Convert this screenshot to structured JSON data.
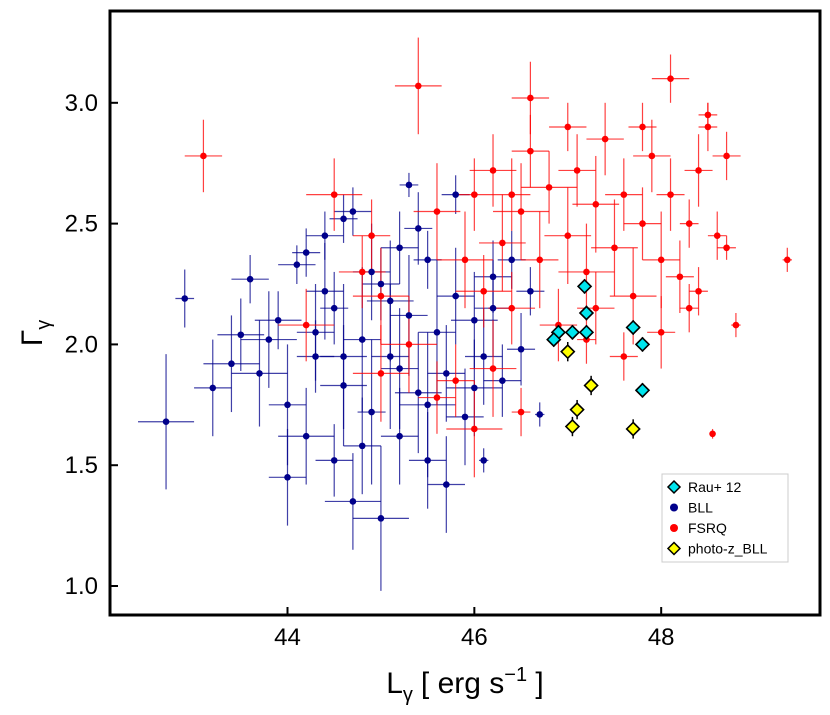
{
  "chart_data": {
    "type": "scatter",
    "title": "",
    "xlabel": {
      "main": "L",
      "sub": "γ",
      "units": "[ erg s",
      "sup": "−1",
      "close": " ]"
    },
    "ylabel": {
      "main": "Γ",
      "sub": "γ"
    },
    "xlim": [
      42.1,
      49.7
    ],
    "ylim": [
      0.88,
      3.38
    ],
    "xticks": [
      44,
      46,
      48
    ],
    "xtick_labels": [
      "44",
      "46",
      "48"
    ],
    "yticks": [
      1.0,
      1.5,
      2.0,
      2.5,
      3.0
    ],
    "ytick_labels": [
      "1.0",
      "1.5",
      "2.0",
      "2.5",
      "3.0"
    ],
    "grid": false,
    "legend_position": "bottom-right",
    "colors": {
      "BLL": "#00008b",
      "FSRQ": "#ff0000",
      "Rau": "#00e5ee",
      "photoz": "#ffff00"
    },
    "series": [
      {
        "name": "BLL",
        "marker": "circle",
        "color": "#00008b",
        "points": [
          [
            42.7,
            1.68,
            0.3,
            0.28
          ],
          [
            42.9,
            2.19,
            0.1,
            0.12
          ],
          [
            43.2,
            1.82,
            0.2,
            0.2
          ],
          [
            43.5,
            2.04,
            0.25,
            0.15
          ],
          [
            43.6,
            2.27,
            0.2,
            0.1
          ],
          [
            43.7,
            1.88,
            0.3,
            0.22
          ],
          [
            43.9,
            2.1,
            0.25,
            0.12
          ],
          [
            44.0,
            1.75,
            0.2,
            0.25
          ],
          [
            44.1,
            2.33,
            0.2,
            0.08
          ],
          [
            44.2,
            1.62,
            0.3,
            0.2
          ],
          [
            44.3,
            1.95,
            0.2,
            0.15
          ],
          [
            44.4,
            2.45,
            0.2,
            0.1
          ],
          [
            44.5,
            1.52,
            0.2,
            0.15
          ],
          [
            44.5,
            2.15,
            0.15,
            0.15
          ],
          [
            44.6,
            1.83,
            0.25,
            0.25
          ],
          [
            44.7,
            2.55,
            0.2,
            0.1
          ],
          [
            44.7,
            1.35,
            0.3,
            0.2
          ],
          [
            44.8,
            2.02,
            0.2,
            0.3
          ],
          [
            44.9,
            1.72,
            0.15,
            0.3
          ],
          [
            45.0,
            2.25,
            0.2,
            0.15
          ],
          [
            45.0,
            1.28,
            0.3,
            0.3
          ],
          [
            45.1,
            1.95,
            0.2,
            0.3
          ],
          [
            45.2,
            2.4,
            0.2,
            0.15
          ],
          [
            45.2,
            1.62,
            0.2,
            0.2
          ],
          [
            45.3,
            2.12,
            0.2,
            0.25
          ],
          [
            45.4,
            1.8,
            0.25,
            0.25
          ],
          [
            45.5,
            2.35,
            0.15,
            0.12
          ],
          [
            45.5,
            1.52,
            0.2,
            0.2
          ],
          [
            45.6,
            2.05,
            0.2,
            0.3
          ],
          [
            45.7,
            1.88,
            0.2,
            0.2
          ],
          [
            45.8,
            2.2,
            0.2,
            0.2
          ],
          [
            45.9,
            1.7,
            0.2,
            0.2
          ],
          [
            46.0,
            2.1,
            0.25,
            0.2
          ],
          [
            46.1,
            1.95,
            0.2,
            0.2
          ],
          [
            46.2,
            2.28,
            0.2,
            0.15
          ],
          [
            46.3,
            1.85,
            0.2,
            0.15
          ],
          [
            46.4,
            2.35,
            0.15,
            0.12
          ],
          [
            46.5,
            1.98,
            0.15,
            0.15
          ],
          [
            46.7,
            1.71,
            0.05,
            0.05
          ],
          [
            46.6,
            2.22,
            0.15,
            0.1
          ],
          [
            46.1,
            1.52,
            0.05,
            0.05
          ],
          [
            44.4,
            2.22,
            0.2,
            0.2
          ],
          [
            44.2,
            2.38,
            0.15,
            0.1
          ],
          [
            45.8,
            2.62,
            0.15,
            0.08
          ],
          [
            45.3,
            2.66,
            0.1,
            0.05
          ],
          [
            44.6,
            2.52,
            0.15,
            0.1
          ],
          [
            43.8,
            2.02,
            0.3,
            0.2
          ],
          [
            44.9,
            2.3,
            0.2,
            0.2
          ],
          [
            45.4,
            2.48,
            0.15,
            0.15
          ],
          [
            45.1,
            2.18,
            0.25,
            0.25
          ],
          [
            44.3,
            2.05,
            0.2,
            0.2
          ],
          [
            44.6,
            1.95,
            0.25,
            0.3
          ],
          [
            44.8,
            1.58,
            0.2,
            0.2
          ],
          [
            45.5,
            1.75,
            0.3,
            0.3
          ],
          [
            46.2,
            2.15,
            0.2,
            0.2
          ],
          [
            46.0,
            1.82,
            0.3,
            0.2
          ],
          [
            45.2,
            1.9,
            0.2,
            0.25
          ],
          [
            43.4,
            1.92,
            0.3,
            0.2
          ],
          [
            44.0,
            1.45,
            0.2,
            0.2
          ],
          [
            45.7,
            1.42,
            0.2,
            0.2
          ]
        ]
      },
      {
        "name": "FSRQ",
        "marker": "circle",
        "color": "#ff0000",
        "points": [
          [
            43.1,
            2.78,
            0.2,
            0.15
          ],
          [
            45.4,
            3.07,
            0.25,
            0.2
          ],
          [
            46.6,
            3.02,
            0.2,
            0.15
          ],
          [
            48.1,
            3.1,
            0.2,
            0.1
          ],
          [
            44.5,
            2.62,
            0.3,
            0.15
          ],
          [
            46.1,
            2.22,
            0.3,
            0.15
          ],
          [
            46.3,
            2.42,
            0.25,
            0.2
          ],
          [
            46.5,
            2.55,
            0.3,
            0.2
          ],
          [
            46.7,
            2.35,
            0.2,
            0.2
          ],
          [
            46.8,
            2.65,
            0.3,
            0.15
          ],
          [
            47.0,
            2.45,
            0.25,
            0.2
          ],
          [
            47.1,
            2.72,
            0.2,
            0.15
          ],
          [
            47.2,
            2.3,
            0.3,
            0.2
          ],
          [
            47.3,
            2.58,
            0.25,
            0.2
          ],
          [
            47.4,
            2.85,
            0.2,
            0.15
          ],
          [
            47.5,
            2.4,
            0.25,
            0.2
          ],
          [
            47.6,
            2.62,
            0.2,
            0.15
          ],
          [
            47.7,
            2.2,
            0.25,
            0.2
          ],
          [
            47.8,
            2.5,
            0.2,
            0.15
          ],
          [
            47.9,
            2.78,
            0.2,
            0.15
          ],
          [
            48.0,
            2.35,
            0.2,
            0.2
          ],
          [
            48.1,
            2.62,
            0.15,
            0.15
          ],
          [
            48.2,
            2.28,
            0.15,
            0.15
          ],
          [
            48.3,
            2.5,
            0.1,
            0.1
          ],
          [
            48.4,
            2.72,
            0.15,
            0.15
          ],
          [
            48.5,
            2.9,
            0.1,
            0.1
          ],
          [
            48.6,
            2.45,
            0.1,
            0.1
          ],
          [
            48.7,
            2.78,
            0.15,
            0.1
          ],
          [
            48.8,
            2.08,
            0.05,
            0.05
          ],
          [
            49.35,
            2.35,
            0.05,
            0.05
          ],
          [
            48.55,
            1.63,
            0.02,
            0.02
          ],
          [
            45.6,
            2.55,
            0.25,
            0.2
          ],
          [
            45.9,
            2.35,
            0.3,
            0.2
          ],
          [
            46.0,
            2.62,
            0.2,
            0.15
          ],
          [
            46.4,
            2.15,
            0.25,
            0.15
          ],
          [
            45.3,
            2.0,
            0.3,
            0.2
          ],
          [
            45.0,
            2.2,
            0.3,
            0.2
          ],
          [
            44.9,
            2.45,
            0.2,
            0.15
          ],
          [
            46.9,
            2.08,
            0.2,
            0.15
          ],
          [
            47.3,
            2.15,
            0.2,
            0.15
          ],
          [
            46.2,
            1.9,
            0.25,
            0.2
          ],
          [
            45.8,
            1.85,
            0.2,
            0.15
          ],
          [
            46.5,
            1.72,
            0.1,
            0.1
          ],
          [
            47.6,
            1.95,
            0.15,
            0.1
          ],
          [
            48.0,
            2.05,
            0.15,
            0.15
          ],
          [
            48.3,
            2.15,
            0.1,
            0.1
          ],
          [
            47.0,
            2.9,
            0.2,
            0.1
          ],
          [
            46.6,
            2.8,
            0.2,
            0.15
          ],
          [
            46.2,
            2.72,
            0.25,
            0.15
          ],
          [
            47.8,
            2.9,
            0.15,
            0.1
          ],
          [
            48.5,
            2.95,
            0.1,
            0.05
          ],
          [
            44.8,
            2.3,
            0.25,
            0.15
          ],
          [
            44.2,
            2.08,
            0.3,
            0.15
          ],
          [
            45.0,
            1.88,
            0.3,
            0.2
          ],
          [
            45.6,
            1.78,
            0.2,
            0.15
          ],
          [
            47.2,
            2.02,
            0.1,
            0.1
          ],
          [
            48.4,
            2.22,
            0.1,
            0.1
          ],
          [
            48.7,
            2.4,
            0.1,
            0.05
          ],
          [
            46.0,
            1.65,
            0.3,
            0.2
          ],
          [
            46.4,
            2.62,
            0.2,
            0.15
          ]
        ]
      },
      {
        "name": "photo-z_BLL",
        "marker": "diamond",
        "color": "#ffff00",
        "points": [
          [
            47.25,
            1.83,
            0.0,
            0.04
          ],
          [
            47.1,
            1.73,
            0.0,
            0.04
          ],
          [
            47.05,
            1.66,
            0.0,
            0.04
          ],
          [
            47.7,
            1.65,
            0.0,
            0.04
          ],
          [
            47.0,
            1.97,
            0.0,
            0.04
          ]
        ]
      },
      {
        "name": "Rau+ 12",
        "marker": "diamond",
        "color": "#00e5ee",
        "points": [
          [
            47.18,
            2.24,
            0.0,
            0.03
          ],
          [
            47.2,
            2.13,
            0.0,
            0.03
          ],
          [
            47.2,
            2.05,
            0.0,
            0.03
          ],
          [
            47.05,
            2.05,
            0.0,
            0.03
          ],
          [
            46.9,
            2.05,
            0.0,
            0.03
          ],
          [
            46.85,
            2.02,
            0.0,
            0.03
          ],
          [
            47.7,
            2.07,
            0.0,
            0.03
          ],
          [
            47.8,
            2.0,
            0.0,
            0.03
          ],
          [
            47.8,
            1.81,
            0.0,
            0.03
          ]
        ]
      }
    ],
    "legend": [
      {
        "label": "Rau+ 12",
        "marker": "diamond",
        "color": "#00e5ee"
      },
      {
        "label": "BLL",
        "marker": "circle",
        "color": "#00008b"
      },
      {
        "label": "FSRQ",
        "marker": "circle",
        "color": "#ff0000"
      },
      {
        "label": "photo-z_BLL",
        "marker": "diamond",
        "color": "#ffff00"
      }
    ]
  }
}
